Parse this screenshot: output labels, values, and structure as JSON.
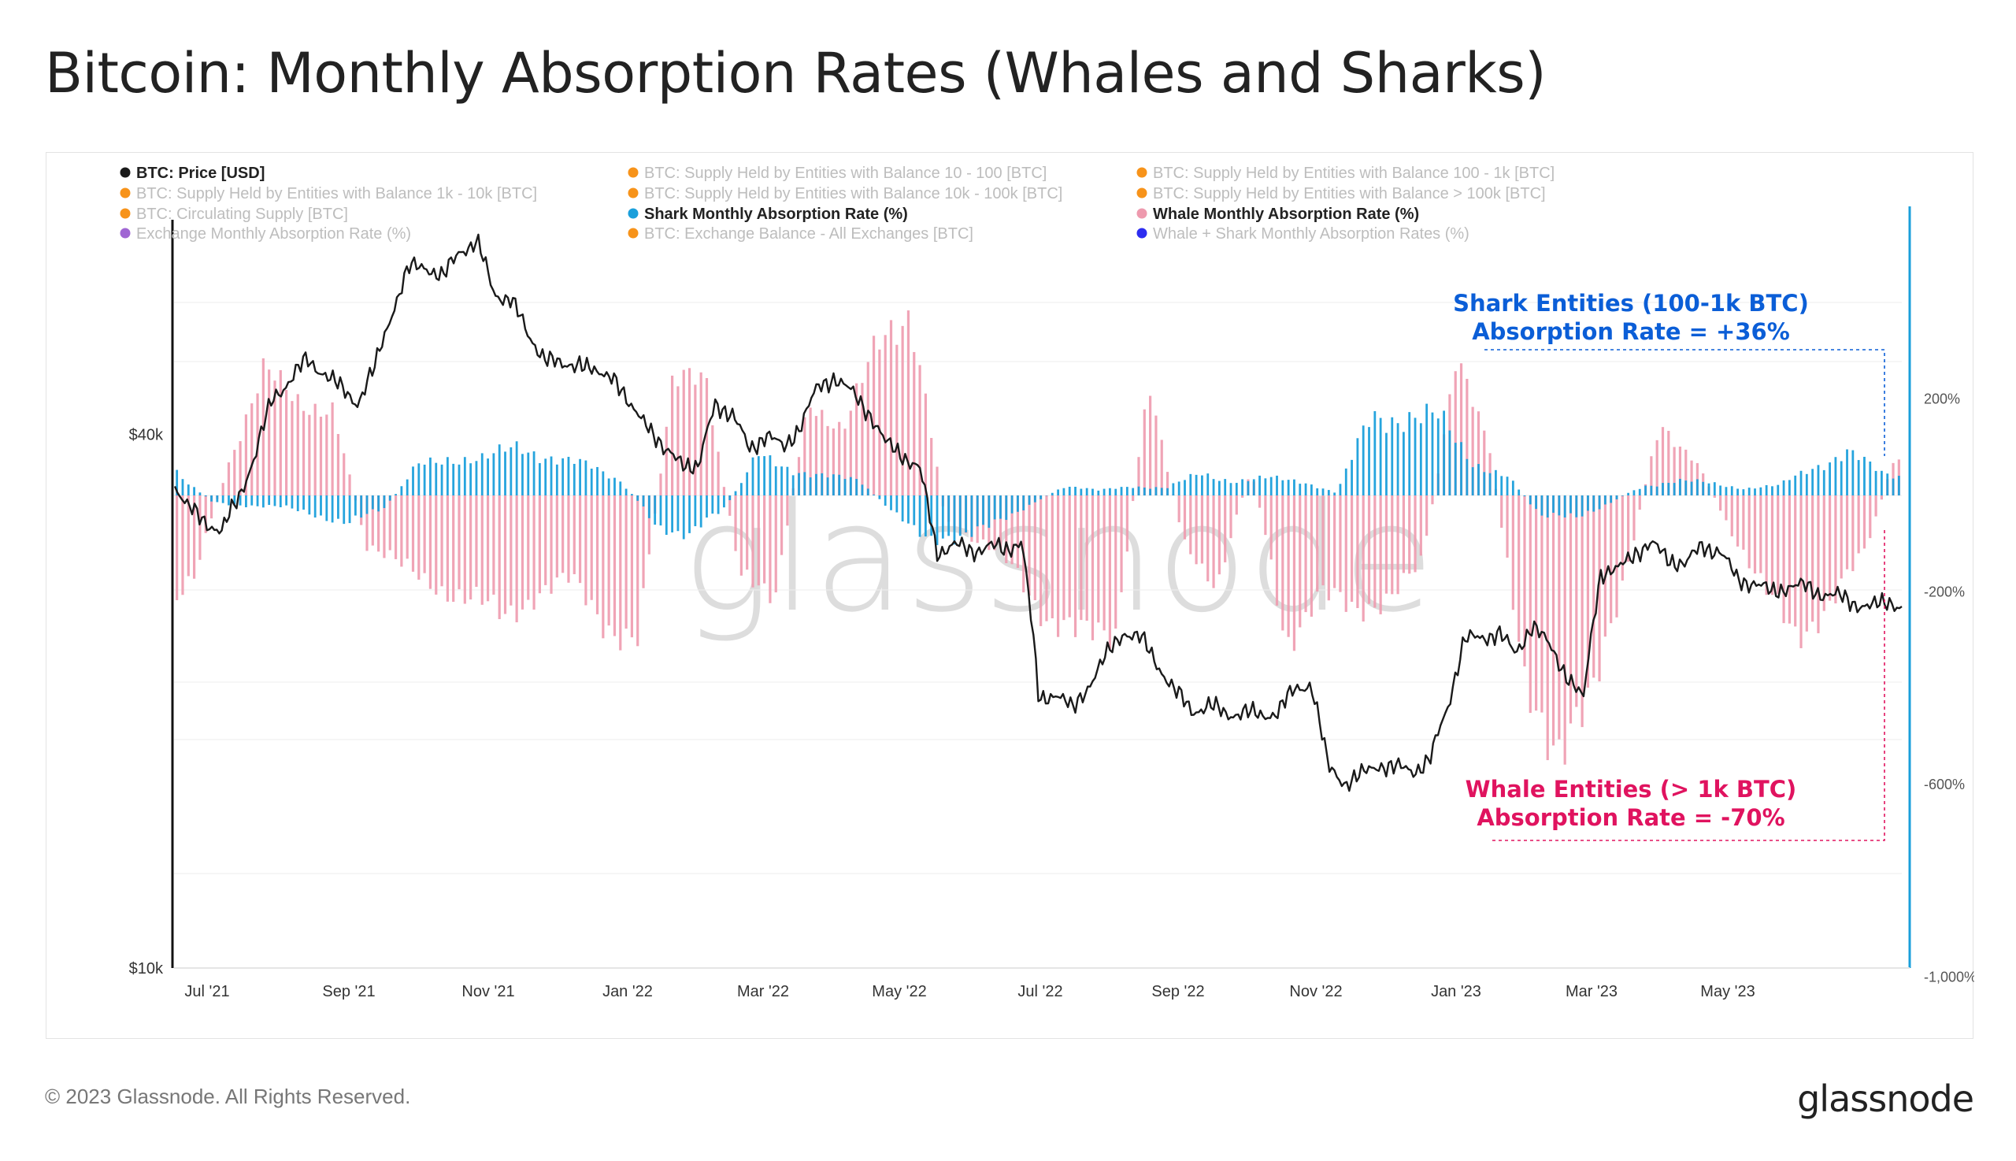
{
  "title": "Bitcoin: Monthly Absorption Rates (Whales and Sharks)",
  "footer": {
    "copyright": "© 2023 Glassnode. All Rights Reserved.",
    "brand": "glassnode"
  },
  "watermark": "glassnode",
  "colors": {
    "price": "#1a1a1a",
    "shark": "#1a9fdb",
    "whale": "#ee9aae",
    "shark_annotation": "#0b5ed7",
    "whale_annotation": "#e0135f",
    "right_axis": "#1a9fdb",
    "orange": "#f7931a",
    "purple": "#a066d3",
    "darkblue": "#2d2df0"
  },
  "chart_data": {
    "type": "line+bar",
    "legend": [
      {
        "label": "BTC: Price [USD]",
        "color": "#1a1a1a",
        "active": true
      },
      {
        "label": "BTC: Supply Held by Entities with Balance 10 - 100 [BTC]",
        "color": "#f7931a",
        "active": false
      },
      {
        "label": "BTC: Supply Held by Entities with Balance 100 - 1k [BTC]",
        "color": "#f7931a",
        "active": false
      },
      {
        "label": "BTC: Supply Held by Entities with Balance 1k - 10k [BTC]",
        "color": "#f7931a",
        "active": false
      },
      {
        "label": "BTC: Supply Held by Entities with Balance 10k - 100k [BTC]",
        "color": "#f7931a",
        "active": false
      },
      {
        "label": "BTC: Supply Held by Entities with Balance > 100k [BTC]",
        "color": "#f7931a",
        "active": false
      },
      {
        "label": "BTC: Circulating Supply [BTC]",
        "color": "#f7931a",
        "active": false
      },
      {
        "label": "Shark Monthly Absorption Rate (%)",
        "color": "#1a9fdb",
        "active": true
      },
      {
        "label": "Whale Monthly Absorption Rate (%)",
        "color": "#ee9aae",
        "active": true
      },
      {
        "label": "Exchange Monthly Absorption Rate (%)",
        "color": "#a066d3",
        "active": false
      },
      {
        "label": "BTC: Exchange Balance - All Exchanges [BTC]",
        "color": "#f7931a",
        "active": false
      },
      {
        "label": "Whale + Shark Monthly Absorption Rates (%)",
        "color": "#2d2df0",
        "active": false
      }
    ],
    "x_ticks": [
      "Jul '21",
      "Sep '21",
      "Nov '21",
      "Jan '22",
      "Mar '22",
      "May '22",
      "Jul '22",
      "Sep '22",
      "Nov '22",
      "Jan '23",
      "Mar '23",
      "May '23"
    ],
    "y_left": {
      "scale": "log",
      "tick_labels": [
        "$40k",
        "$10k"
      ],
      "tick_values": [
        40000,
        10000
      ],
      "range": [
        10000,
        72000
      ]
    },
    "y_right": {
      "tick_labels": [
        "200%",
        "-200%",
        "-600%",
        "-1,000%"
      ],
      "tick_values": [
        200,
        -200,
        -600,
        -1000
      ],
      "range": [
        -1000,
        430
      ]
    },
    "x_range": [
      2021.454,
      2023.484
    ],
    "price": {
      "name": "BTC: Price [USD]",
      "x": [
        2021.455,
        2021.47,
        2021.49,
        2021.51,
        2021.53,
        2021.55,
        2021.57,
        2021.59,
        2021.61,
        2021.63,
        2021.65,
        2021.67,
        2021.69,
        2021.71,
        2021.73,
        2021.75,
        2021.77,
        2021.79,
        2021.81,
        2021.83,
        2021.85,
        2021.87,
        2021.89,
        2021.91,
        2021.93,
        2021.95,
        2021.97,
        2021.99,
        2022.01,
        2022.03,
        2022.05,
        2022.07,
        2022.09,
        2022.11,
        2022.13,
        2022.15,
        2022.17,
        2022.19,
        2022.21,
        2022.23,
        2022.25,
        2022.27,
        2022.29,
        2022.31,
        2022.33,
        2022.35,
        2022.37,
        2022.39,
        2022.41,
        2022.43,
        2022.45,
        2022.47,
        2022.49,
        2022.51,
        2022.53,
        2022.55,
        2022.57,
        2022.59,
        2022.61,
        2022.63,
        2022.65,
        2022.67,
        2022.69,
        2022.71,
        2022.73,
        2022.75,
        2022.77,
        2022.79,
        2022.81,
        2022.83,
        2022.85,
        2022.87,
        2022.89,
        2022.91,
        2022.93,
        2022.95,
        2022.97,
        2022.99,
        2023.01,
        2023.03,
        2023.05,
        2023.07,
        2023.09,
        2023.11,
        2023.13,
        2023.15,
        2023.17,
        2023.19,
        2023.21,
        2023.23,
        2023.25,
        2023.27,
        2023.29,
        2023.31,
        2023.33,
        2023.35,
        2023.37,
        2023.39,
        2023.41,
        2023.43,
        2023.45,
        2023.47,
        2023.484
      ],
      "values": [
        35000,
        33000,
        32000,
        31000,
        34000,
        38000,
        44000,
        46000,
        48500,
        47000,
        45000,
        43500,
        47500,
        55000,
        61500,
        62000,
        60000,
        64500,
        66000,
        57500,
        57000,
        51500,
        49000,
        47500,
        48500,
        46500,
        47000,
        42500,
        41500,
        38000,
        37500,
        36500,
        43500,
        42000,
        38500,
        40000,
        38500,
        41000,
        45000,
        46500,
        44500,
        42500,
        39000,
        38000,
        36500,
        29500,
        30000,
        29500,
        30000,
        29500,
        30500,
        20000,
        20500,
        19500,
        21000,
        22500,
        24000,
        23500,
        22000,
        20500,
        19500,
        19800,
        19300,
        19500,
        19200,
        19500,
        20500,
        21000,
        16800,
        16200,
        16500,
        17000,
        16800,
        16700,
        17200,
        19600,
        23500,
        23500,
        24000,
        22500,
        24500,
        23000,
        21500,
        20000,
        28000,
        28000,
        29500,
        30000,
        29000,
        28500,
        30000,
        29500,
        27500,
        27200,
        26500,
        27000,
        26900,
        26500,
        26200,
        25800,
        25500,
        26000,
        25500
      ]
    },
    "shark": {
      "name": "Shark Monthly Absorption Rate (%)",
      "x": [
        2021.455,
        2021.5,
        2021.54,
        2021.58,
        2021.62,
        2021.66,
        2021.7,
        2021.74,
        2021.78,
        2021.82,
        2021.86,
        2021.9,
        2021.94,
        2021.98,
        2022.02,
        2022.06,
        2022.1,
        2022.14,
        2022.18,
        2022.22,
        2022.26,
        2022.3,
        2022.34,
        2022.38,
        2022.42,
        2022.46,
        2022.5,
        2022.54,
        2022.58,
        2022.62,
        2022.66,
        2022.7,
        2022.74,
        2022.78,
        2022.82,
        2022.86,
        2022.9,
        2022.94,
        2022.98,
        2023.02,
        2023.06,
        2023.1,
        2023.14,
        2023.18,
        2023.22,
        2023.26,
        2023.3,
        2023.34,
        2023.38,
        2023.42,
        2023.46,
        2023.484
      ],
      "values": [
        50,
        -15,
        -20,
        -25,
        -40,
        -55,
        -30,
        60,
        80,
        75,
        100,
        80,
        60,
        30,
        -60,
        -80,
        -30,
        80,
        55,
        40,
        30,
        -40,
        -80,
        -100,
        -50,
        -20,
        20,
        10,
        20,
        15,
        45,
        30,
        35,
        30,
        5,
        160,
        170,
        155,
        70,
        40,
        -40,
        -50,
        -15,
        20,
        30,
        25,
        15,
        20,
        60,
        90,
        45,
        40
      ]
    },
    "whale": {
      "name": "Whale Monthly Absorption Rate (%)",
      "x": [
        2021.455,
        2021.48,
        2021.52,
        2021.56,
        2021.6,
        2021.64,
        2021.68,
        2021.72,
        2021.76,
        2021.8,
        2021.84,
        2021.88,
        2021.92,
        2021.96,
        2022.0,
        2022.04,
        2022.08,
        2022.12,
        2022.16,
        2022.2,
        2022.24,
        2022.28,
        2022.32,
        2022.36,
        2022.4,
        2022.44,
        2022.48,
        2022.52,
        2022.56,
        2022.6,
        2022.64,
        2022.68,
        2022.72,
        2022.76,
        2022.8,
        2022.84,
        2022.88,
        2022.92,
        2022.96,
        2023.0,
        2023.04,
        2023.08,
        2023.12,
        2023.16,
        2023.2,
        2023.24,
        2023.28,
        2023.32,
        2023.36,
        2023.4,
        2023.44,
        2023.48,
        2023.484
      ],
      "values": [
        -200,
        -150,
        80,
        250,
        200,
        180,
        -100,
        -150,
        -180,
        -220,
        -250,
        -200,
        -180,
        -260,
        -300,
        250,
        220,
        -180,
        -200,
        200,
        140,
        300,
        400,
        -50,
        -100,
        -150,
        -250,
        -300,
        -280,
        240,
        -100,
        -180,
        60,
        -300,
        -200,
        -250,
        -200,
        -150,
        270,
        100,
        -400,
        -500,
        -450,
        -150,
        150,
        80,
        -60,
        -200,
        -280,
        -230,
        -120,
        100,
        -100
      ]
    },
    "annotations": [
      {
        "text": [
          "Shark Entities (100-1k BTC)",
          "Absorption Rate = +36%"
        ],
        "color": "#0b5ed7"
      },
      {
        "text": [
          "Whale Entities (> 1k BTC)",
          "Absorption Rate = -70%"
        ],
        "color": "#e0135f"
      }
    ]
  }
}
